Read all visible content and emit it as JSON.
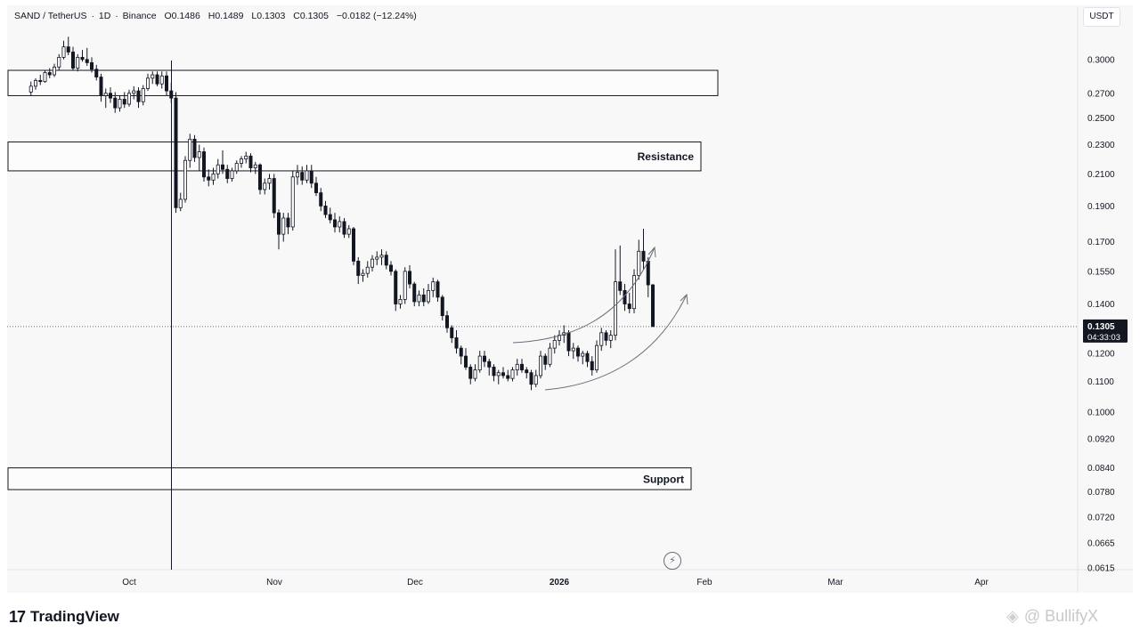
{
  "header": {
    "symbol": "SAND / TetherUS",
    "interval": "1D",
    "exchange": "Binance",
    "open": "O0.1486",
    "high": "H0.1489",
    "low": "L0.1303",
    "close": "C0.1305",
    "change": "−0.0182 (−12.24%)"
  },
  "unit_label": "USDT",
  "footer": {
    "brand": "TradingView",
    "watermark": "@ BullifyX"
  },
  "chart_data": {
    "type": "candlestick",
    "scale": "log",
    "ylim": [
      0.06,
      0.33
    ],
    "y_ticks": [
      "0.3000",
      "0.2700",
      "0.2500",
      "0.2300",
      "0.2100",
      "0.1900",
      "0.1700",
      "0.1550",
      "0.1400",
      "0.1200",
      "0.1100",
      "0.1000",
      "0.0920",
      "0.0840",
      "0.0780",
      "0.0720",
      "0.0665",
      "0.0615"
    ],
    "x_ticks": [
      "Oct",
      "Nov",
      "Dec",
      "2026",
      "Feb",
      "Mar",
      "Apr"
    ],
    "last_price": {
      "value": "0.1305",
      "countdown": "04:33:03"
    },
    "zones": [
      {
        "label": "",
        "low": 0.268,
        "high": 0.29
      },
      {
        "label": "Resistance",
        "low": 0.212,
        "high": 0.232
      },
      {
        "label": "Support",
        "low": 0.0785,
        "high": 0.084
      }
    ],
    "colors": {
      "up": "#ffffff",
      "down": "#131722",
      "wick": "#131722"
    },
    "candles": [
      {
        "date": "2025-09-10",
        "o": 0.271,
        "h": 0.28,
        "l": 0.268,
        "c": 0.276
      },
      {
        "date": "2025-09-11",
        "o": 0.276,
        "h": 0.283,
        "l": 0.273,
        "c": 0.281
      },
      {
        "date": "2025-09-12",
        "o": 0.281,
        "h": 0.286,
        "l": 0.277,
        "c": 0.28
      },
      {
        "date": "2025-09-13",
        "o": 0.28,
        "h": 0.29,
        "l": 0.279,
        "c": 0.288
      },
      {
        "date": "2025-09-14",
        "o": 0.288,
        "h": 0.292,
        "l": 0.283,
        "c": 0.286
      },
      {
        "date": "2025-09-15",
        "o": 0.286,
        "h": 0.296,
        "l": 0.284,
        "c": 0.293
      },
      {
        "date": "2025-09-16",
        "o": 0.293,
        "h": 0.305,
        "l": 0.29,
        "c": 0.302
      },
      {
        "date": "2025-09-17",
        "o": 0.302,
        "h": 0.318,
        "l": 0.3,
        "c": 0.312
      },
      {
        "date": "2025-09-18",
        "o": 0.312,
        "h": 0.322,
        "l": 0.304,
        "c": 0.307
      },
      {
        "date": "2025-09-19",
        "o": 0.307,
        "h": 0.312,
        "l": 0.29,
        "c": 0.292
      },
      {
        "date": "2025-09-20",
        "o": 0.292,
        "h": 0.305,
        "l": 0.289,
        "c": 0.302
      },
      {
        "date": "2025-09-21",
        "o": 0.302,
        "h": 0.309,
        "l": 0.298,
        "c": 0.3
      },
      {
        "date": "2025-09-22",
        "o": 0.3,
        "h": 0.311,
        "l": 0.294,
        "c": 0.297
      },
      {
        "date": "2025-09-23",
        "o": 0.297,
        "h": 0.302,
        "l": 0.288,
        "c": 0.291
      },
      {
        "date": "2025-09-24",
        "o": 0.291,
        "h": 0.295,
        "l": 0.281,
        "c": 0.284
      },
      {
        "date": "2025-09-25",
        "o": 0.284,
        "h": 0.287,
        "l": 0.263,
        "c": 0.268
      },
      {
        "date": "2025-09-26",
        "o": 0.268,
        "h": 0.274,
        "l": 0.258,
        "c": 0.27
      },
      {
        "date": "2025-09-27",
        "o": 0.27,
        "h": 0.275,
        "l": 0.262,
        "c": 0.266
      },
      {
        "date": "2025-09-28",
        "o": 0.266,
        "h": 0.271,
        "l": 0.254,
        "c": 0.258
      },
      {
        "date": "2025-09-29",
        "o": 0.258,
        "h": 0.268,
        "l": 0.255,
        "c": 0.265
      },
      {
        "date": "2025-09-30",
        "o": 0.265,
        "h": 0.271,
        "l": 0.258,
        "c": 0.261
      },
      {
        "date": "2025-10-01",
        "o": 0.261,
        "h": 0.273,
        "l": 0.259,
        "c": 0.27
      },
      {
        "date": "2025-10-02",
        "o": 0.27,
        "h": 0.276,
        "l": 0.265,
        "c": 0.272
      },
      {
        "date": "2025-10-03",
        "o": 0.272,
        "h": 0.275,
        "l": 0.258,
        "c": 0.263
      },
      {
        "date": "2025-10-04",
        "o": 0.263,
        "h": 0.277,
        "l": 0.26,
        "c": 0.274
      },
      {
        "date": "2025-10-05",
        "o": 0.274,
        "h": 0.287,
        "l": 0.272,
        "c": 0.283
      },
      {
        "date": "2025-10-06",
        "o": 0.283,
        "h": 0.289,
        "l": 0.278,
        "c": 0.286
      },
      {
        "date": "2025-10-07",
        "o": 0.286,
        "h": 0.289,
        "l": 0.276,
        "c": 0.278
      },
      {
        "date": "2025-10-08",
        "o": 0.278,
        "h": 0.289,
        "l": 0.274,
        "c": 0.285
      },
      {
        "date": "2025-10-09",
        "o": 0.285,
        "h": 0.289,
        "l": 0.268,
        "c": 0.272
      },
      {
        "date": "2025-10-10",
        "o": 0.272,
        "h": 0.279,
        "l": 0.262,
        "c": 0.266
      },
      {
        "date": "2025-10-11",
        "o": 0.266,
        "h": 0.271,
        "l": 0.186,
        "c": 0.189
      },
      {
        "date": "2025-10-12",
        "o": 0.189,
        "h": 0.198,
        "l": 0.187,
        "c": 0.194
      },
      {
        "date": "2025-10-13",
        "o": 0.194,
        "h": 0.222,
        "l": 0.192,
        "c": 0.219
      },
      {
        "date": "2025-10-14",
        "o": 0.219,
        "h": 0.238,
        "l": 0.214,
        "c": 0.234
      },
      {
        "date": "2025-10-15",
        "o": 0.234,
        "h": 0.237,
        "l": 0.218,
        "c": 0.221
      },
      {
        "date": "2025-10-16",
        "o": 0.221,
        "h": 0.23,
        "l": 0.212,
        "c": 0.225
      },
      {
        "date": "2025-10-17",
        "o": 0.225,
        "h": 0.228,
        "l": 0.205,
        "c": 0.208
      },
      {
        "date": "2025-10-18",
        "o": 0.208,
        "h": 0.213,
        "l": 0.202,
        "c": 0.206
      },
      {
        "date": "2025-10-19",
        "o": 0.206,
        "h": 0.214,
        "l": 0.203,
        "c": 0.21
      },
      {
        "date": "2025-10-20",
        "o": 0.21,
        "h": 0.22,
        "l": 0.207,
        "c": 0.216
      },
      {
        "date": "2025-10-21",
        "o": 0.216,
        "h": 0.226,
        "l": 0.21,
        "c": 0.213
      },
      {
        "date": "2025-10-22",
        "o": 0.213,
        "h": 0.216,
        "l": 0.204,
        "c": 0.207
      },
      {
        "date": "2025-10-23",
        "o": 0.207,
        "h": 0.214,
        "l": 0.205,
        "c": 0.212
      },
      {
        "date": "2025-10-24",
        "o": 0.212,
        "h": 0.219,
        "l": 0.21,
        "c": 0.217
      },
      {
        "date": "2025-10-25",
        "o": 0.217,
        "h": 0.222,
        "l": 0.214,
        "c": 0.22
      },
      {
        "date": "2025-10-26",
        "o": 0.22,
        "h": 0.225,
        "l": 0.217,
        "c": 0.222
      },
      {
        "date": "2025-10-27",
        "o": 0.222,
        "h": 0.224,
        "l": 0.211,
        "c": 0.214
      },
      {
        "date": "2025-10-28",
        "o": 0.214,
        "h": 0.218,
        "l": 0.21,
        "c": 0.216
      },
      {
        "date": "2025-10-29",
        "o": 0.216,
        "h": 0.217,
        "l": 0.197,
        "c": 0.2
      },
      {
        "date": "2025-10-30",
        "o": 0.2,
        "h": 0.207,
        "l": 0.197,
        "c": 0.204
      },
      {
        "date": "2025-10-31",
        "o": 0.204,
        "h": 0.21,
        "l": 0.2,
        "c": 0.207
      },
      {
        "date": "2025-11-01",
        "o": 0.207,
        "h": 0.21,
        "l": 0.183,
        "c": 0.186
      },
      {
        "date": "2025-11-02",
        "o": 0.186,
        "h": 0.188,
        "l": 0.166,
        "c": 0.174
      },
      {
        "date": "2025-11-03",
        "o": 0.174,
        "h": 0.186,
        "l": 0.17,
        "c": 0.183
      },
      {
        "date": "2025-11-04",
        "o": 0.183,
        "h": 0.186,
        "l": 0.174,
        "c": 0.178
      },
      {
        "date": "2025-11-05",
        "o": 0.178,
        "h": 0.212,
        "l": 0.176,
        "c": 0.208
      },
      {
        "date": "2025-11-06",
        "o": 0.208,
        "h": 0.216,
        "l": 0.203,
        "c": 0.211
      },
      {
        "date": "2025-11-07",
        "o": 0.211,
        "h": 0.215,
        "l": 0.203,
        "c": 0.206
      },
      {
        "date": "2025-11-08",
        "o": 0.206,
        "h": 0.216,
        "l": 0.204,
        "c": 0.212
      },
      {
        "date": "2025-11-09",
        "o": 0.212,
        "h": 0.216,
        "l": 0.201,
        "c": 0.204
      },
      {
        "date": "2025-11-10",
        "o": 0.204,
        "h": 0.208,
        "l": 0.196,
        "c": 0.198
      },
      {
        "date": "2025-11-11",
        "o": 0.198,
        "h": 0.201,
        "l": 0.187,
        "c": 0.19
      },
      {
        "date": "2025-11-12",
        "o": 0.19,
        "h": 0.193,
        "l": 0.183,
        "c": 0.185
      },
      {
        "date": "2025-11-13",
        "o": 0.185,
        "h": 0.189,
        "l": 0.18,
        "c": 0.182
      },
      {
        "date": "2025-11-14",
        "o": 0.182,
        "h": 0.186,
        "l": 0.175,
        "c": 0.178
      },
      {
        "date": "2025-11-15",
        "o": 0.178,
        "h": 0.184,
        "l": 0.175,
        "c": 0.181
      },
      {
        "date": "2025-11-16",
        "o": 0.181,
        "h": 0.183,
        "l": 0.172,
        "c": 0.174
      },
      {
        "date": "2025-11-17",
        "o": 0.174,
        "h": 0.179,
        "l": 0.172,
        "c": 0.177
      },
      {
        "date": "2025-11-18",
        "o": 0.177,
        "h": 0.178,
        "l": 0.158,
        "c": 0.16
      },
      {
        "date": "2025-11-19",
        "o": 0.16,
        "h": 0.162,
        "l": 0.149,
        "c": 0.153
      },
      {
        "date": "2025-11-20",
        "o": 0.153,
        "h": 0.156,
        "l": 0.15,
        "c": 0.154
      },
      {
        "date": "2025-11-21",
        "o": 0.154,
        "h": 0.16,
        "l": 0.152,
        "c": 0.157
      },
      {
        "date": "2025-11-22",
        "o": 0.157,
        "h": 0.163,
        "l": 0.155,
        "c": 0.161
      },
      {
        "date": "2025-11-23",
        "o": 0.161,
        "h": 0.165,
        "l": 0.158,
        "c": 0.162
      },
      {
        "date": "2025-11-24",
        "o": 0.162,
        "h": 0.166,
        "l": 0.158,
        "c": 0.163
      },
      {
        "date": "2025-11-25",
        "o": 0.163,
        "h": 0.165,
        "l": 0.156,
        "c": 0.158
      },
      {
        "date": "2025-11-26",
        "o": 0.158,
        "h": 0.16,
        "l": 0.153,
        "c": 0.155
      },
      {
        "date": "2025-11-27",
        "o": 0.155,
        "h": 0.156,
        "l": 0.137,
        "c": 0.14
      },
      {
        "date": "2025-11-28",
        "o": 0.14,
        "h": 0.144,
        "l": 0.138,
        "c": 0.142
      },
      {
        "date": "2025-11-29",
        "o": 0.142,
        "h": 0.157,
        "l": 0.14,
        "c": 0.155
      },
      {
        "date": "2025-11-30",
        "o": 0.155,
        "h": 0.158,
        "l": 0.147,
        "c": 0.149
      },
      {
        "date": "2025-12-01",
        "o": 0.149,
        "h": 0.15,
        "l": 0.139,
        "c": 0.141
      },
      {
        "date": "2025-12-02",
        "o": 0.141,
        "h": 0.146,
        "l": 0.139,
        "c": 0.144
      },
      {
        "date": "2025-12-03",
        "o": 0.144,
        "h": 0.147,
        "l": 0.139,
        "c": 0.141
      },
      {
        "date": "2025-12-04",
        "o": 0.141,
        "h": 0.149,
        "l": 0.14,
        "c": 0.146
      },
      {
        "date": "2025-12-05",
        "o": 0.146,
        "h": 0.152,
        "l": 0.143,
        "c": 0.15
      },
      {
        "date": "2025-12-06",
        "o": 0.15,
        "h": 0.151,
        "l": 0.141,
        "c": 0.143
      },
      {
        "date": "2025-12-07",
        "o": 0.143,
        "h": 0.144,
        "l": 0.133,
        "c": 0.135
      },
      {
        "date": "2025-12-08",
        "o": 0.135,
        "h": 0.137,
        "l": 0.128,
        "c": 0.13
      },
      {
        "date": "2025-12-09",
        "o": 0.13,
        "h": 0.131,
        "l": 0.124,
        "c": 0.126
      },
      {
        "date": "2025-12-10",
        "o": 0.126,
        "h": 0.129,
        "l": 0.12,
        "c": 0.122
      },
      {
        "date": "2025-12-11",
        "o": 0.122,
        "h": 0.123,
        "l": 0.116,
        "c": 0.119
      },
      {
        "date": "2025-12-12",
        "o": 0.119,
        "h": 0.122,
        "l": 0.114,
        "c": 0.115
      },
      {
        "date": "2025-12-13",
        "o": 0.115,
        "h": 0.116,
        "l": 0.109,
        "c": 0.111
      },
      {
        "date": "2025-12-14",
        "o": 0.111,
        "h": 0.116,
        "l": 0.11,
        "c": 0.114
      },
      {
        "date": "2025-12-15",
        "o": 0.114,
        "h": 0.121,
        "l": 0.113,
        "c": 0.119
      },
      {
        "date": "2025-12-16",
        "o": 0.119,
        "h": 0.121,
        "l": 0.115,
        "c": 0.117
      },
      {
        "date": "2025-12-17",
        "o": 0.117,
        "h": 0.118,
        "l": 0.112,
        "c": 0.115
      },
      {
        "date": "2025-12-18",
        "o": 0.115,
        "h": 0.116,
        "l": 0.11,
        "c": 0.112
      },
      {
        "date": "2025-12-19",
        "o": 0.112,
        "h": 0.114,
        "l": 0.109,
        "c": 0.113
      },
      {
        "date": "2025-12-20",
        "o": 0.113,
        "h": 0.115,
        "l": 0.111,
        "c": 0.112
      },
      {
        "date": "2025-12-21",
        "o": 0.112,
        "h": 0.114,
        "l": 0.11,
        "c": 0.111
      },
      {
        "date": "2025-12-22",
        "o": 0.111,
        "h": 0.115,
        "l": 0.11,
        "c": 0.114
      },
      {
        "date": "2025-12-23",
        "o": 0.114,
        "h": 0.118,
        "l": 0.112,
        "c": 0.116
      },
      {
        "date": "2025-12-24",
        "o": 0.116,
        "h": 0.118,
        "l": 0.113,
        "c": 0.114
      },
      {
        "date": "2025-12-25",
        "o": 0.114,
        "h": 0.115,
        "l": 0.111,
        "c": 0.113
      },
      {
        "date": "2025-12-26",
        "o": 0.113,
        "h": 0.114,
        "l": 0.107,
        "c": 0.109
      },
      {
        "date": "2025-12-27",
        "o": 0.109,
        "h": 0.114,
        "l": 0.108,
        "c": 0.112
      },
      {
        "date": "2025-12-28",
        "o": 0.112,
        "h": 0.121,
        "l": 0.111,
        "c": 0.119
      },
      {
        "date": "2025-12-29",
        "o": 0.119,
        "h": 0.12,
        "l": 0.114,
        "c": 0.116
      },
      {
        "date": "2025-12-30",
        "o": 0.116,
        "h": 0.124,
        "l": 0.115,
        "c": 0.122
      },
      {
        "date": "2025-12-31",
        "o": 0.122,
        "h": 0.127,
        "l": 0.12,
        "c": 0.125
      },
      {
        "date": "2026-01-01",
        "o": 0.125,
        "h": 0.129,
        "l": 0.123,
        "c": 0.127
      },
      {
        "date": "2026-01-02",
        "o": 0.127,
        "h": 0.131,
        "l": 0.124,
        "c": 0.128
      },
      {
        "date": "2026-01-03",
        "o": 0.128,
        "h": 0.129,
        "l": 0.119,
        "c": 0.121
      },
      {
        "date": "2026-01-04",
        "o": 0.121,
        "h": 0.124,
        "l": 0.118,
        "c": 0.122
      },
      {
        "date": "2026-01-05",
        "o": 0.122,
        "h": 0.123,
        "l": 0.117,
        "c": 0.119
      },
      {
        "date": "2026-01-06",
        "o": 0.119,
        "h": 0.121,
        "l": 0.116,
        "c": 0.12
      },
      {
        "date": "2026-01-07",
        "o": 0.12,
        "h": 0.121,
        "l": 0.115,
        "c": 0.117
      },
      {
        "date": "2026-01-08",
        "o": 0.117,
        "h": 0.119,
        "l": 0.112,
        "c": 0.114
      },
      {
        "date": "2026-01-09",
        "o": 0.114,
        "h": 0.125,
        "l": 0.113,
        "c": 0.123
      },
      {
        "date": "2026-01-10",
        "o": 0.123,
        "h": 0.13,
        "l": 0.121,
        "c": 0.128
      },
      {
        "date": "2026-01-11",
        "o": 0.128,
        "h": 0.129,
        "l": 0.123,
        "c": 0.125
      },
      {
        "date": "2026-01-12",
        "o": 0.125,
        "h": 0.129,
        "l": 0.122,
        "c": 0.127
      },
      {
        "date": "2026-01-13",
        "o": 0.127,
        "h": 0.166,
        "l": 0.125,
        "c": 0.15
      },
      {
        "date": "2026-01-14",
        "o": 0.15,
        "h": 0.168,
        "l": 0.144,
        "c": 0.146
      },
      {
        "date": "2026-01-15",
        "o": 0.146,
        "h": 0.149,
        "l": 0.137,
        "c": 0.14
      },
      {
        "date": "2026-01-16",
        "o": 0.14,
        "h": 0.145,
        "l": 0.136,
        "c": 0.138
      },
      {
        "date": "2026-01-17",
        "o": 0.138,
        "h": 0.156,
        "l": 0.136,
        "c": 0.153
      },
      {
        "date": "2026-01-18",
        "o": 0.153,
        "h": 0.171,
        "l": 0.151,
        "c": 0.165
      },
      {
        "date": "2026-01-19",
        "o": 0.165,
        "h": 0.177,
        "l": 0.156,
        "c": 0.16
      },
      {
        "date": "2026-01-20",
        "o": 0.16,
        "h": 0.162,
        "l": 0.143,
        "c": 0.1486
      },
      {
        "date": "2026-01-21",
        "o": 0.1486,
        "h": 0.1489,
        "l": 0.1303,
        "c": 0.1305
      }
    ]
  }
}
